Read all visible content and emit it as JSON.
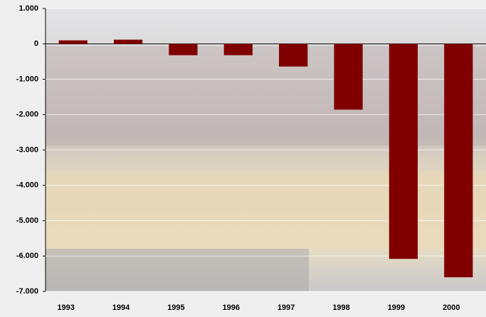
{
  "chart_data": {
    "type": "bar",
    "categories": [
      "1993",
      "1994",
      "1995",
      "1996",
      "1997",
      "1998",
      "1999",
      "2000"
    ],
    "values": [
      100,
      120,
      -320,
      -320,
      -640,
      -1860,
      -6080,
      -6600
    ],
    "color": "#800000",
    "ylim": [
      -7000,
      1000
    ],
    "yticks": [
      {
        "value": 1000,
        "label": "1.000"
      },
      0,
      {
        "value": -1000,
        "label": "-1.000"
      },
      {
        "value": -2000,
        "label": "-2.000"
      },
      {
        "value": -3000,
        "label": "-3.000"
      },
      {
        "value": -4000,
        "label": "-4.000"
      },
      {
        "value": -5000,
        "label": "-5.000"
      },
      {
        "value": -6000,
        "label": "-6.000"
      },
      {
        "value": -7000,
        "label": "-7.000"
      }
    ],
    "grid": true
  }
}
